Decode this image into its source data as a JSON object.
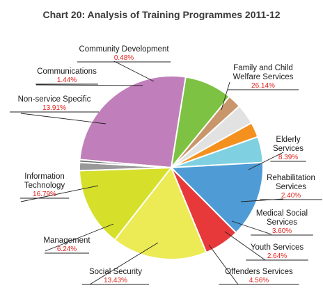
{
  "chart_data": {
    "type": "pie",
    "title": "Chart 20: Analysis of Training Programmes 2011-12",
    "slices": [
      {
        "label": [
          "Family and Child",
          "Welfare Services"
        ],
        "value_label": "26.14%",
        "value": 26.14,
        "color": "#c07fba"
      },
      {
        "label": [
          "Elderly",
          "Services"
        ],
        "value_label": "8.39%",
        "value": 8.39,
        "color": "#7dc242"
      },
      {
        "label": [
          "Rehabilitation",
          "Services"
        ],
        "value_label": "2.40%",
        "value": 2.4,
        "color": "#c9966b"
      },
      {
        "label": [
          "Medical Social",
          "Services"
        ],
        "value_label": "3.60%",
        "value": 3.6,
        "color": "#e2e2e2"
      },
      {
        "label": [
          "Youth Services"
        ],
        "value_label": "2.64%",
        "value": 2.64,
        "color": "#f4901e"
      },
      {
        "label": [
          "Offenders Services"
        ],
        "value_label": "4.56%",
        "value": 4.56,
        "color": "#7fd0e0"
      },
      {
        "label": [
          "Social Security"
        ],
        "value_label": "13.43%",
        "value": 13.43,
        "color": "#4f9bd6"
      },
      {
        "label": [
          "Management"
        ],
        "value_label": "6.24%",
        "value": 6.24,
        "color": "#e8393a"
      },
      {
        "label": [
          "Information",
          "Technology"
        ],
        "value_label": "16.79%",
        "value": 16.79,
        "color": "#ecea55"
      },
      {
        "label": [
          "Non-service Specific"
        ],
        "value_label": "13.91%",
        "value": 13.91,
        "color": "#d6e02b"
      },
      {
        "label": [
          "Communications"
        ],
        "value_label": "1.44%",
        "value": 1.44,
        "color": "#999999"
      },
      {
        "label": [
          "Community Development"
        ],
        "value_label": "0.48%",
        "value": 0.48,
        "color": "#6b6b6b"
      }
    ]
  }
}
